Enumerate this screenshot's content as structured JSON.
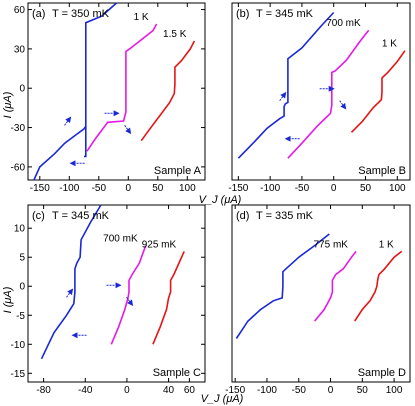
{
  "figure": {
    "ylabel": "I (μA)",
    "xlabel": "V_J (μA)"
  },
  "chart_data": [
    {
      "type": "line",
      "panel_label": "(a)",
      "temp_label": "T = 350 mK",
      "sample_label": "Sample A",
      "xlim": [
        -170,
        130
      ],
      "ylim": [
        -70,
        65
      ],
      "xticks": [
        -150,
        -100,
        -50,
        0,
        50,
        100
      ],
      "yticks": [
        -60,
        -30,
        0,
        30,
        60
      ],
      "xlabel": "",
      "ylabel": "I (μA)",
      "series": [
        {
          "name": "350 mK",
          "color": "#1a28d6",
          "offset_label": "",
          "points": [
            [
              -160,
              -70
            ],
            [
              -150,
              -60
            ],
            [
              -125,
              -50
            ],
            [
              -108,
              -42
            ],
            [
              -90,
              -36
            ],
            [
              -75,
              -31
            ],
            [
              -72,
              -29
            ],
            [
              -72,
              -52
            ],
            [
              -75,
              -52
            ],
            [
              -72,
              -52
            ],
            [
              -72,
              -30
            ],
            [
              -72,
              28
            ],
            [
              -72,
              50
            ],
            [
              -45,
              55
            ],
            [
              -20,
              65
            ]
          ]
        },
        {
          "name": "1 K",
          "color": "#e619e6",
          "offset_label": "1 K",
          "points": [
            [
              -70,
              -48
            ],
            [
              -55,
              -38
            ],
            [
              -35,
              -26
            ],
            [
              -8,
              -25
            ],
            [
              -4,
              -18
            ],
            [
              -4,
              28
            ],
            [
              5,
              31
            ],
            [
              25,
              38
            ],
            [
              42,
              44
            ],
            [
              48,
              49
            ]
          ]
        },
        {
          "name": "1.5 K",
          "color": "#e61414",
          "offset_label": "1.5 K",
          "points": [
            [
              22,
              -40
            ],
            [
              35,
              -32
            ],
            [
              55,
              -20
            ],
            [
              70,
              -11
            ],
            [
              78,
              -4
            ],
            [
              79,
              3
            ],
            [
              79,
              16
            ],
            [
              90,
              21
            ],
            [
              105,
              30
            ],
            [
              112,
              36
            ]
          ]
        }
      ],
      "annotations": [
        "arrow-up",
        "arrow-left-bottom",
        "arrow-right-top",
        "arrow-down-top"
      ]
    },
    {
      "type": "line",
      "panel_label": "(b)",
      "temp_label": "T = 345 mK",
      "sample_label": "Sample B",
      "xlim": [
        -160,
        120
      ],
      "ylim": [
        -65,
        65
      ],
      "xticks": [
        -150,
        -100,
        -50,
        0,
        50,
        100
      ],
      "yticks": [],
      "xlabel": "",
      "ylabel": "",
      "series": [
        {
          "name": "345 mK",
          "color": "#1a28d6",
          "offset_label": "",
          "points": [
            [
              -150,
              -49
            ],
            [
              -125,
              -37
            ],
            [
              -105,
              -27
            ],
            [
              -85,
              -20
            ],
            [
              -78,
              -18
            ],
            [
              -78,
              -11
            ],
            [
              -76,
              -9
            ],
            [
              -72,
              -8
            ],
            [
              -72,
              14
            ],
            [
              -72,
              24
            ],
            [
              -50,
              32
            ],
            [
              -20,
              48
            ],
            [
              0,
              58
            ]
          ]
        },
        {
          "name": "700 mK",
          "color": "#e619e6",
          "offset_label": "700 mK",
          "points": [
            [
              -72,
              -49
            ],
            [
              -50,
              -38
            ],
            [
              -25,
              -25
            ],
            [
              -5,
              -16
            ],
            [
              -3,
              -10
            ],
            [
              -3,
              14
            ],
            [
              2,
              15
            ],
            [
              20,
              23
            ],
            [
              40,
              36
            ],
            [
              55,
              45
            ]
          ]
        },
        {
          "name": "1 K",
          "color": "#e61414",
          "offset_label": "1 K",
          "points": [
            [
              28,
              -30
            ],
            [
              45,
              -22
            ],
            [
              62,
              -12
            ],
            [
              75,
              -6
            ],
            [
              76,
              0
            ],
            [
              76,
              10
            ],
            [
              85,
              14
            ],
            [
              100,
              22
            ],
            [
              112,
              30
            ]
          ]
        }
      ],
      "annotations": [
        "arrow-up",
        "arrow-left-bottom",
        "arrow-right-top",
        "arrow-down-top"
      ]
    },
    {
      "type": "line",
      "panel_label": "(c)",
      "temp_label": "T = 345 mK",
      "sample_label": "Sample C",
      "xlim": [
        -95,
        75
      ],
      "ylim": [
        -16.5,
        14
      ],
      "xticks": [
        -80,
        -40,
        0,
        40,
        60
      ],
      "yticks": [
        -15,
        -10,
        -5,
        0,
        5,
        10
      ],
      "xlabel": "V_J (μA)",
      "ylabel": "I (μA)",
      "series": [
        {
          "name": "345 mK",
          "color": "#1a28d6",
          "offset_label": "",
          "points": [
            [
              -82,
              -12.5
            ],
            [
              -70,
              -8
            ],
            [
              -58,
              -5
            ],
            [
              -51,
              -3
            ],
            [
              -50,
              -1
            ],
            [
              -50,
              3
            ],
            [
              -48,
              4
            ],
            [
              -45,
              5
            ],
            [
              -44,
              8
            ],
            [
              -35,
              11
            ],
            [
              -25,
              14
            ]
          ]
        },
        {
          "name": "700 mK",
          "color": "#e619e6",
          "offset_label": "700 mK",
          "points": [
            [
              -15,
              -10
            ],
            [
              -8,
              -7
            ],
            [
              -2,
              -4
            ],
            [
              1,
              -2
            ],
            [
              2,
              -1
            ],
            [
              2,
              1
            ],
            [
              5,
              2
            ],
            [
              12,
              4
            ],
            [
              18,
              7
            ]
          ]
        },
        {
          "name": "925 mK",
          "color": "#e61414",
          "offset_label": "925 mK",
          "points": [
            [
              25,
              -10
            ],
            [
              32,
              -7
            ],
            [
              38,
              -4
            ],
            [
              40,
              -2
            ],
            [
              42,
              -1
            ],
            [
              42,
              1
            ],
            [
              45,
              2
            ],
            [
              50,
              4
            ],
            [
              55,
              6
            ]
          ]
        }
      ],
      "annotations": [
        "arrow-up",
        "arrow-left-bottom",
        "arrow-right-top",
        "arrow-down-top"
      ]
    },
    {
      "type": "line",
      "panel_label": "(d)",
      "temp_label": "T = 335 mK",
      "sample_label": "Sample D",
      "xlim": [
        -155,
        125
      ],
      "ylim": [
        -16.5,
        14
      ],
      "xticks": [
        -150,
        -100,
        -50,
        0,
        50,
        100
      ],
      "yticks": [],
      "xlabel": "",
      "ylabel": "",
      "series": [
        {
          "name": "335 mK",
          "color": "#1a28d6",
          "offset_label": "",
          "points": [
            [
              -148,
              -9
            ],
            [
              -130,
              -6
            ],
            [
              -110,
              -4
            ],
            [
              -90,
              -2.5
            ],
            [
              -76,
              -2
            ],
            [
              -75,
              0
            ],
            [
              -75,
              2.5
            ],
            [
              -70,
              3
            ],
            [
              -50,
              5
            ],
            [
              -25,
              7
            ],
            [
              -2,
              9
            ]
          ]
        },
        {
          "name": "775 mK",
          "color": "#e619e6",
          "offset_label": "775 mK",
          "points": [
            [
              -25,
              -6
            ],
            [
              -10,
              -4
            ],
            [
              0,
              -2
            ],
            [
              3,
              -1
            ],
            [
              3,
              1
            ],
            [
              8,
              2
            ],
            [
              20,
              3
            ],
            [
              33,
              5
            ],
            [
              40,
              6
            ]
          ]
        },
        {
          "name": "1 K",
          "color": "#e61414",
          "offset_label": "1 K",
          "points": [
            [
              38,
              -6
            ],
            [
              50,
              -4
            ],
            [
              62,
              -2.5
            ],
            [
              70,
              -1
            ],
            [
              73,
              0
            ],
            [
              74,
              1
            ],
            [
              76,
              2
            ],
            [
              85,
              3
            ],
            [
              100,
              5
            ],
            [
              112,
              6
            ]
          ]
        }
      ],
      "annotations": []
    }
  ]
}
